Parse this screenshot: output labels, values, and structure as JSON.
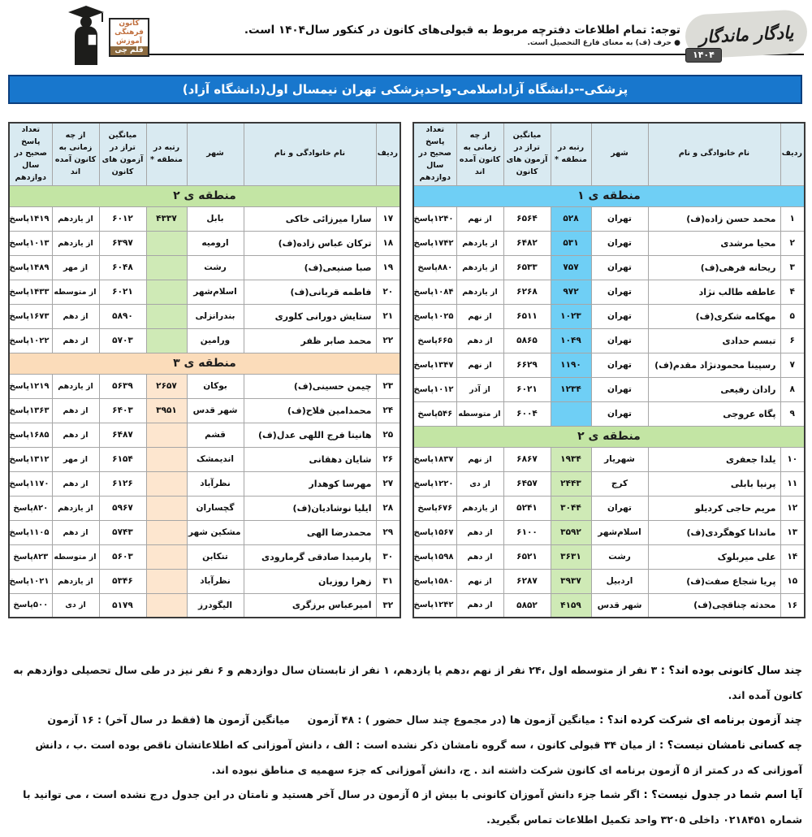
{
  "header": {
    "logo": {
      "sign_lines": [
        "کانون",
        "فرهنگی",
        "آموزش",
        "قلم چی"
      ]
    },
    "note_line1": "توجه: تمام اطلاعات دفترچه مربوط به قبولی‌های کانون در کنکور سال۱۴۰۴ است.",
    "note_line2": "● حرف (ف) به معنای فارغ التحصیل است.",
    "brand": {
      "title": "یادگار ماندگار",
      "year": "۱۴۰۴"
    }
  },
  "title_bar": "پزشکی--دانشگاه آزاداسلامی-واحدپزشکی تهران  نیمسال اول(دانشگاه آزاد)",
  "colors": {
    "title_bar_bg": "#1877cd",
    "title_bar_border": "#0c3f7e",
    "header_cell_bg": "#d9eaf1",
    "logo_text": "#c06f3e",
    "logo_last_line_bg": "#8c6b40",
    "region1": {
      "band": "#6fcff5",
      "cell": "#6fcff5"
    },
    "region2": {
      "band": "#c3e5a4",
      "cell": "#cfeab6"
    },
    "region3": {
      "band": "#fbdcba",
      "cell": "#fde6cf"
    }
  },
  "table": {
    "col_widths": [
      "30px",
      "163px",
      "70px",
      "50px",
      "58px",
      "58px",
      "53px"
    ],
    "columns": [
      {
        "key": "no",
        "label": "ردیف"
      },
      {
        "key": "name",
        "label": "نام خانوادگی و نام"
      },
      {
        "key": "city",
        "label": "شهر"
      },
      {
        "key": "rank",
        "label": "رتبه در منطقه *"
      },
      {
        "key": "avg",
        "label": "میانگین تراز در آزمون های کانون"
      },
      {
        "key": "since",
        "label": "از چه زمانی به کانون آمده اند"
      },
      {
        "key": "answers",
        "label": "تعداد پاسخ صحیح در سال دوازدهم"
      }
    ]
  },
  "tables": {
    "right": {
      "sections": [
        {
          "label": "منطقه ی ۱",
          "color": "region1",
          "rows": [
            {
              "no": "۱",
              "name": "محمد حسن زاده(ف)",
              "city": "تهران",
              "rank": "۵۲۸",
              "avg": "۶۵۶۴",
              "since": "از نهم",
              "answers": "۱۲۴۰پاسخ"
            },
            {
              "no": "۲",
              "name": "محیا مرشدی",
              "city": "تهران",
              "rank": "۵۳۱",
              "avg": "۶۴۸۲",
              "since": "از یازدهم",
              "answers": "۱۷۴۲پاسخ"
            },
            {
              "no": "۳",
              "name": "ریحانه فرهی(ف)",
              "city": "تهران",
              "rank": "۷۵۷",
              "avg": "۶۵۳۳",
              "since": "از یازدهم",
              "answers": "۸۸۰پاسخ"
            },
            {
              "no": "۴",
              "name": "عاطفه طالب نژاد",
              "city": "تهران",
              "rank": "۹۷۲",
              "avg": "۶۲۶۸",
              "since": "از یازدهم",
              "answers": "۱۰۸۴پاسخ"
            },
            {
              "no": "۵",
              "name": "مهکامه شکری(ف)",
              "city": "تهران",
              "rank": "۱۰۲۳",
              "avg": "۶۵۱۱",
              "since": "از نهم",
              "answers": "۱۰۲۵پاسخ"
            },
            {
              "no": "۶",
              "name": "تبسم حدادی",
              "city": "تهران",
              "rank": "۱۰۴۹",
              "avg": "۵۸۶۵",
              "since": "از دهم",
              "answers": "۶۶۵پاسخ"
            },
            {
              "no": "۷",
              "name": "رسپینا محمودنژاد مقدم(ف)",
              "city": "تهران",
              "rank": "۱۱۹۰",
              "avg": "۶۶۲۹",
              "since": "از نهم",
              "answers": "۱۳۴۷پاسخ"
            },
            {
              "no": "۸",
              "name": "رادان رفیعی",
              "city": "تهران",
              "rank": "۱۲۳۴",
              "avg": "۶۰۲۱",
              "since": "از آذر",
              "answers": "۱۰۱۲پاسخ"
            },
            {
              "no": "۹",
              "name": "پگاه عروجی",
              "city": "تهران",
              "rank": "",
              "avg": "۶۰۰۴",
              "since": "از متوسطه اول",
              "answers": "۵۴۶پاسخ"
            }
          ]
        },
        {
          "label": "منطقه ی ۲",
          "color": "region2",
          "rows": [
            {
              "no": "۱۰",
              "name": "یلدا جعفری",
              "city": "شهریار",
              "rank": "۱۹۳۴",
              "avg": "۶۸۶۷",
              "since": "از نهم",
              "answers": "۱۸۳۷پاسخ"
            },
            {
              "no": "۱۱",
              "name": "پرنیا بابلی",
              "city": "کرج",
              "rank": "۲۴۴۳",
              "avg": "۶۴۵۷",
              "since": "از دی",
              "answers": "۱۲۲۰پاسخ"
            },
            {
              "no": "۱۲",
              "name": "مریم حاجی کردیلو",
              "city": "تهران",
              "rank": "۳۰۴۴",
              "avg": "۵۲۴۱",
              "since": "از یازدهم",
              "answers": "۶۷۶پاسخ"
            },
            {
              "no": "۱۳",
              "name": "ماندانا کوهگردی(ف)",
              "city": "اسلام‌شهر",
              "rank": "۳۵۹۲",
              "avg": "۶۱۰۰",
              "since": "از دهم",
              "answers": "۱۵۶۷پاسخ"
            },
            {
              "no": "۱۴",
              "name": "علی میربلوک",
              "city": "رشت",
              "rank": "۳۶۳۱",
              "avg": "۶۵۲۱",
              "since": "از دهم",
              "answers": "۱۵۹۸پاسخ"
            },
            {
              "no": "۱۵",
              "name": "پریا شجاع صفت(ف)",
              "city": "اردبیل",
              "rank": "۳۹۳۷",
              "avg": "۶۲۸۷",
              "since": "از نهم",
              "answers": "۱۵۸۰پاسخ"
            },
            {
              "no": "۱۶",
              "name": "محدثه چناقچی(ف)",
              "city": "شهر قدس",
              "rank": "۴۱۵۹",
              "avg": "۵۸۵۲",
              "since": "از دهم",
              "answers": "۱۲۴۲پاسخ"
            }
          ]
        }
      ]
    },
    "left": {
      "sections": [
        {
          "label": "منطقه ی ۲",
          "color": "region2",
          "rows": [
            {
              "no": "۱۷",
              "name": "سارا میرزائی خاکی",
              "city": "بابل",
              "rank": "۴۳۳۷",
              "avg": "۶۰۱۲",
              "since": "از یازدهم",
              "answers": "۱۴۱۹پاسخ"
            },
            {
              "no": "۱۸",
              "name": "ترکان عباس زاده(ف)",
              "city": "ارومیه",
              "rank": "",
              "avg": "۶۳۹۷",
              "since": "از یازدهم",
              "answers": "۱۰۱۳پاسخ"
            },
            {
              "no": "۱۹",
              "name": "صبا صنیعی(ف)",
              "city": "رشت",
              "rank": "",
              "avg": "۶۰۴۸",
              "since": "از مهر",
              "answers": "۱۴۸۹پاسخ"
            },
            {
              "no": "۲۰",
              "name": "فاطمه قربانی(ف)",
              "city": "اسلام‌شهر",
              "rank": "",
              "avg": "۶۰۲۱",
              "since": "از متوسطه اول",
              "answers": "۱۴۳۳پاسخ"
            },
            {
              "no": "۲۱",
              "name": "ستایش دورانی کلوری",
              "city": "بندرانزلی",
              "rank": "",
              "avg": "۵۸۹۰",
              "since": "از دهم",
              "answers": "۱۶۷۳پاسخ"
            },
            {
              "no": "۲۲",
              "name": "محمد صابر ظفر",
              "city": "ورامین",
              "rank": "",
              "avg": "۵۷۰۳",
              "since": "از دهم",
              "answers": "۱۰۲۲پاسخ"
            }
          ]
        },
        {
          "label": "منطقه ی ۳",
          "color": "region3",
          "rows": [
            {
              "no": "۲۳",
              "name": "چیمن حسینی(ف)",
              "city": "بوکان",
              "rank": "۲۶۵۷",
              "avg": "۵۶۳۹",
              "since": "از یازدهم",
              "answers": "۱۲۱۹پاسخ"
            },
            {
              "no": "۲۴",
              "name": "محمدامین فلاح(ف)",
              "city": "شهر قدس",
              "rank": "۳۹۵۱",
              "avg": "۶۴۰۳",
              "since": "از دهم",
              "answers": "۱۳۶۳پاسخ"
            },
            {
              "no": "۲۵",
              "name": "هانیتا فرج اللهی عدل(ف)",
              "city": "قشم",
              "rank": "",
              "avg": "۶۴۸۷",
              "since": "از دهم",
              "answers": "۱۶۸۵پاسخ"
            },
            {
              "no": "۲۶",
              "name": "شایان دهقانی",
              "city": "اندیمشک",
              "rank": "",
              "avg": "۶۱۵۴",
              "since": "از مهر",
              "answers": "۱۳۱۲پاسخ"
            },
            {
              "no": "۲۷",
              "name": "مهرسا کوهدار",
              "city": "نظرآباد",
              "rank": "",
              "avg": "۶۱۲۶",
              "since": "از دهم",
              "answers": "۱۱۷۰پاسخ"
            },
            {
              "no": "۲۸",
              "name": "ایلیا نوشادیان(ف)",
              "city": "گچساران",
              "rank": "",
              "avg": "۵۹۶۷",
              "since": "از یازدهم",
              "answers": "۸۲۰پاسخ"
            },
            {
              "no": "۲۹",
              "name": "محمدرضا الهی",
              "city": "مشکین شهر",
              "rank": "",
              "avg": "۵۷۴۳",
              "since": "از دهم",
              "answers": "۱۱۰۵پاسخ"
            },
            {
              "no": "۳۰",
              "name": "پارمیدا صادقی گرمارودی",
              "city": "تنکابن",
              "rank": "",
              "avg": "۵۶۰۳",
              "since": "از متوسطه اول",
              "answers": "۸۲۳پاسخ"
            },
            {
              "no": "۳۱",
              "name": "زهرا روزبان",
              "city": "نظرآباد",
              "rank": "",
              "avg": "۵۳۴۶",
              "since": "از یازدهم",
              "answers": "۱۰۲۱پاسخ"
            },
            {
              "no": "۳۲",
              "name": "امیرعباس برزگری",
              "city": "الیگودرز",
              "rank": "",
              "avg": "۵۱۷۹",
              "since": "از دی",
              "answers": "۵۰۰پاسخ"
            }
          ]
        }
      ]
    }
  },
  "footer": {
    "paragraphs": [
      {
        "lead": "چند سال کانونی بوده اند؟ :",
        "text": "۳ نفر از متوسطه اول ،۲۴ نفر از نهم ،دهم یا یازدهم، ۱ نفر از تابستان سال دوازدهم و ۶ نفر نیز در طی سال تحصیلی دوازدهم به کانون آمده اند."
      },
      {
        "lead": "چند آزمون برنامه ای شرکت کرده اند؟ :",
        "text": "میانگین آزمون ها (در مجموع چند سال حضور ) : ۴۸ آزمون     میانگین آزمون ها (فقط در سال آخر) : ۱۶ آزمون"
      },
      {
        "lead": "چه کسانی نامشان نیست؟ :",
        "text": "از میان ۳۴ قبولی کانون ، سه گروه نامشان ذکر نشده است : الف ، دانش آموزانی که اطلاعاتشان ناقص بوده است .ب ، دانش آموزانی که در کمتر از ۵ آزمون برنامه ای کانون شرکت داشته اند . ج، دانش آموزانی که جزء سهمیه ی مناطق نبوده اند."
      },
      {
        "lead": "آیا اسم شما در جدول نیست؟ :",
        "text": "اگر شما جزء دانش آموزان کانونی با بیش از ۵ آزمون در سال آخر هستید و نامتان در این جدول درج نشده است ، می توانید با شماره ۰۲۱۸۴۵۱ داخلی ۳۲۰۵ واحد تکمیل اطلاعات تماس بگیرید."
      }
    ]
  }
}
